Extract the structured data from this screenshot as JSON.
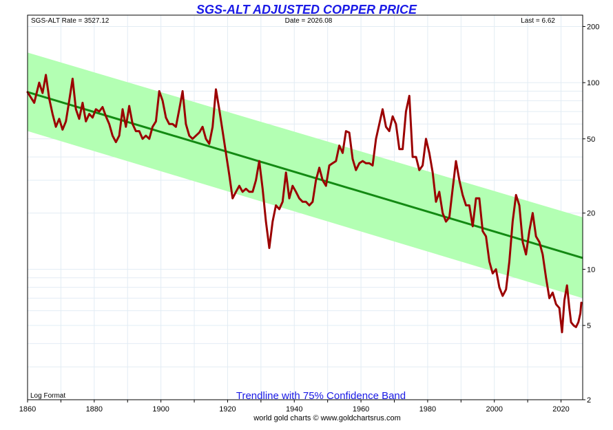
{
  "chart_data": {
    "type": "line",
    "title": "SGS-ALT ADJUSTED COPPER PRICE",
    "info_left": "SGS-ALT Rate = 3527.12",
    "info_center": "Date = 2026.08",
    "info_right": "Last = 6.62",
    "scale_label": "Log Format",
    "band_label": "Trendline with 75% Confidence Band",
    "footer": "world gold charts © www.goldchartsrus.com",
    "y_scale": "log",
    "xlim": [
      1860,
      2026.5
    ],
    "ylim": [
      2,
      230
    ],
    "x_ticks": [
      1860,
      1880,
      1900,
      1920,
      1940,
      1960,
      1980,
      2000,
      2020
    ],
    "x_tick_labels": [
      "1860",
      "1880",
      "1900",
      "1920",
      "1940",
      "1960",
      "1980",
      "2000",
      "2020"
    ],
    "y_ticks": [
      2,
      5,
      10,
      20,
      50,
      100,
      200
    ],
    "y_tick_labels": [
      "2",
      "5",
      "10",
      "20",
      "50",
      "100",
      "200"
    ],
    "grid": true,
    "colors": {
      "title": "#1a1ae6",
      "price_line": "#9b0000",
      "trend_line": "#138a13",
      "band": "#b3ffb3",
      "grid": "#e2ecf4",
      "band_label": "#1a1ae6"
    },
    "trendline": {
      "x": [
        1860,
        2026.5
      ],
      "y": [
        89,
        11.5
      ]
    },
    "confidence_band": {
      "x": [
        1860,
        2026.5
      ],
      "upper": [
        145,
        19
      ],
      "lower": [
        55,
        7
      ]
    },
    "series": [
      {
        "values": [
          [
            1860.0,
            89
          ],
          [
            1862.0,
            78
          ],
          [
            1863.5,
            100
          ],
          [
            1864.5,
            88
          ],
          [
            1865.5,
            110
          ],
          [
            1866.5,
            82
          ],
          [
            1867.5,
            68
          ],
          [
            1868.5,
            58
          ],
          [
            1869.5,
            64
          ],
          [
            1870.5,
            56
          ],
          [
            1871.5,
            62
          ],
          [
            1872.5,
            80
          ],
          [
            1873.5,
            105
          ],
          [
            1874.5,
            72
          ],
          [
            1875.5,
            64
          ],
          [
            1876.5,
            78
          ],
          [
            1877.5,
            62
          ],
          [
            1878.5,
            68
          ],
          [
            1879.5,
            65
          ],
          [
            1880.5,
            72
          ],
          [
            1881.5,
            70
          ],
          [
            1882.5,
            74
          ],
          [
            1883.5,
            66
          ],
          [
            1884.5,
            60
          ],
          [
            1885.5,
            52
          ],
          [
            1886.5,
            48
          ],
          [
            1887.5,
            52
          ],
          [
            1888.5,
            72
          ],
          [
            1889.5,
            58
          ],
          [
            1890.5,
            75
          ],
          [
            1891.5,
            60
          ],
          [
            1892.5,
            55
          ],
          [
            1893.5,
            55
          ],
          [
            1894.5,
            50
          ],
          [
            1895.5,
            52
          ],
          [
            1896.5,
            50
          ],
          [
            1897.5,
            58
          ],
          [
            1898.5,
            62
          ],
          [
            1899.5,
            90
          ],
          [
            1900.5,
            80
          ],
          [
            1901.5,
            65
          ],
          [
            1902.5,
            60
          ],
          [
            1903.5,
            60
          ],
          [
            1904.5,
            58
          ],
          [
            1905.5,
            72
          ],
          [
            1906.5,
            90
          ],
          [
            1907.5,
            60
          ],
          [
            1908.5,
            52
          ],
          [
            1909.5,
            50
          ],
          [
            1910.5,
            52
          ],
          [
            1911.5,
            54
          ],
          [
            1912.5,
            58
          ],
          [
            1913.5,
            50
          ],
          [
            1914.5,
            47
          ],
          [
            1915.5,
            58
          ],
          [
            1916.5,
            92
          ],
          [
            1917.5,
            72
          ],
          [
            1918.5,
            55
          ],
          [
            1919.5,
            42
          ],
          [
            1920.5,
            32
          ],
          [
            1921.5,
            24
          ],
          [
            1922.5,
            26
          ],
          [
            1923.5,
            28
          ],
          [
            1924.5,
            26
          ],
          [
            1925.5,
            27
          ],
          [
            1926.5,
            26
          ],
          [
            1927.5,
            26
          ],
          [
            1928.5,
            30
          ],
          [
            1929.5,
            38
          ],
          [
            1930.5,
            27
          ],
          [
            1931.5,
            18
          ],
          [
            1932.5,
            13
          ],
          [
            1933.5,
            18
          ],
          [
            1934.5,
            22
          ],
          [
            1935.5,
            21
          ],
          [
            1936.5,
            23
          ],
          [
            1937.5,
            33
          ],
          [
            1938.5,
            24
          ],
          [
            1939.5,
            28
          ],
          [
            1940.5,
            26
          ],
          [
            1941.5,
            24
          ],
          [
            1942.5,
            23
          ],
          [
            1943.5,
            23
          ],
          [
            1944.5,
            22
          ],
          [
            1945.5,
            23
          ],
          [
            1946.5,
            30
          ],
          [
            1947.5,
            35
          ],
          [
            1948.5,
            30
          ],
          [
            1949.5,
            28
          ],
          [
            1950.5,
            36
          ],
          [
            1951.5,
            37
          ],
          [
            1952.5,
            38
          ],
          [
            1953.5,
            46
          ],
          [
            1954.5,
            42
          ],
          [
            1955.5,
            55
          ],
          [
            1956.5,
            54
          ],
          [
            1957.5,
            39
          ],
          [
            1958.5,
            34
          ],
          [
            1959.5,
            37
          ],
          [
            1960.5,
            38
          ],
          [
            1961.5,
            37
          ],
          [
            1962.5,
            37
          ],
          [
            1963.5,
            36
          ],
          [
            1964.5,
            50
          ],
          [
            1965.5,
            60
          ],
          [
            1966.5,
            72
          ],
          [
            1967.5,
            58
          ],
          [
            1968.5,
            55
          ],
          [
            1969.5,
            66
          ],
          [
            1970.5,
            60
          ],
          [
            1971.5,
            44
          ],
          [
            1972.5,
            44
          ],
          [
            1973.5,
            70
          ],
          [
            1974.5,
            85
          ],
          [
            1975.5,
            40
          ],
          [
            1976.5,
            40
          ],
          [
            1977.5,
            34
          ],
          [
            1978.5,
            36
          ],
          [
            1979.5,
            50
          ],
          [
            1980.5,
            42
          ],
          [
            1981.5,
            33
          ],
          [
            1982.5,
            23
          ],
          [
            1983.5,
            26
          ],
          [
            1984.5,
            20
          ],
          [
            1985.5,
            18
          ],
          [
            1986.5,
            19
          ],
          [
            1987.5,
            27
          ],
          [
            1988.5,
            38
          ],
          [
            1989.5,
            30
          ],
          [
            1990.5,
            25
          ],
          [
            1991.5,
            22
          ],
          [
            1992.5,
            22
          ],
          [
            1993.5,
            17
          ],
          [
            1994.5,
            24
          ],
          [
            1995.5,
            24
          ],
          [
            1996.5,
            16
          ],
          [
            1997.5,
            15
          ],
          [
            1998.5,
            11
          ],
          [
            1999.5,
            9.5
          ],
          [
            2000.5,
            10
          ],
          [
            2001.5,
            8
          ],
          [
            2002.5,
            7.2
          ],
          [
            2003.5,
            7.8
          ],
          [
            2004.5,
            11
          ],
          [
            2005.5,
            18
          ],
          [
            2006.5,
            25
          ],
          [
            2007.5,
            22
          ],
          [
            2008.5,
            14
          ],
          [
            2009.5,
            12
          ],
          [
            2010.5,
            16
          ],
          [
            2011.5,
            20
          ],
          [
            2012.5,
            15
          ],
          [
            2013.5,
            14
          ],
          [
            2014.5,
            12
          ],
          [
            2015.5,
            9
          ],
          [
            2016.5,
            7
          ],
          [
            2017.5,
            7.5
          ],
          [
            2018.5,
            6.5
          ],
          [
            2019.5,
            6.2
          ],
          [
            2020.3,
            4.6
          ],
          [
            2021.0,
            6.8
          ],
          [
            2021.8,
            8.2
          ],
          [
            2022.5,
            6.2
          ],
          [
            2023.0,
            5.2
          ],
          [
            2023.8,
            5.0
          ],
          [
            2024.5,
            4.9
          ],
          [
            2025.2,
            5.2
          ],
          [
            2025.8,
            5.8
          ],
          [
            2026.08,
            6.62
          ]
        ]
      }
    ]
  }
}
